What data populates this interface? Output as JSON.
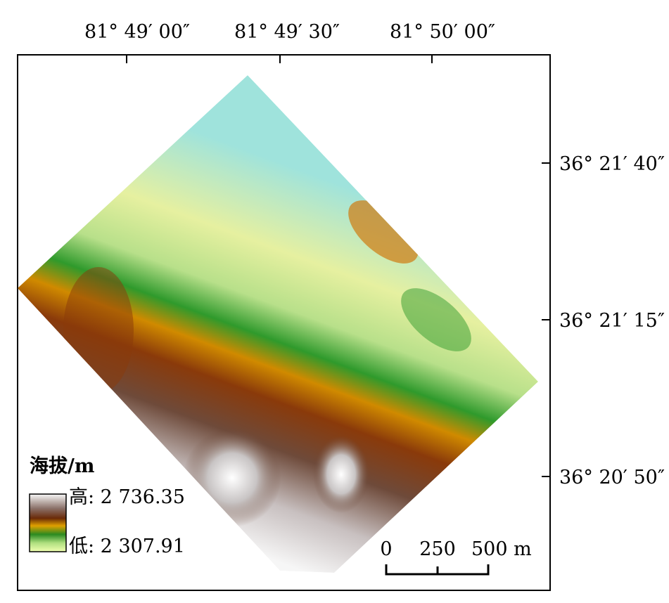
{
  "map": {
    "top_ticks": [
      "81° 49′ 00″",
      "81° 49′ 30″",
      "81° 50′ 00″"
    ],
    "right_ticks": [
      "36° 21′ 40″",
      "36° 21′ 15″",
      "36° 20′ 50″"
    ],
    "legend": {
      "title": "海拔/m",
      "high": "高: 2 736.35",
      "low": "低: 2 307.91"
    },
    "scale_bar": {
      "labels": [
        "0",
        "250",
        "500 m"
      ]
    }
  }
}
